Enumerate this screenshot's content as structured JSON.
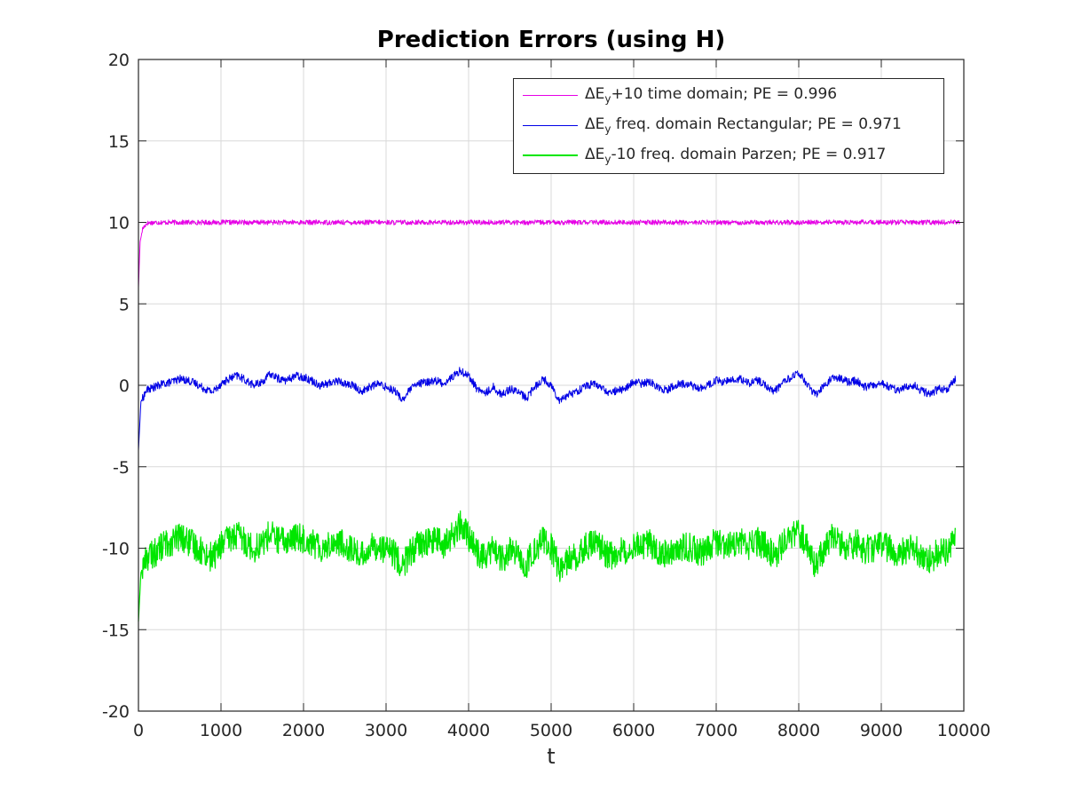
{
  "chart_data": {
    "type": "line",
    "title": "Prediction Errors (using H)",
    "xlabel": "t",
    "ylabel": "",
    "xlim": [
      0,
      10000
    ],
    "ylim": [
      -20,
      20
    ],
    "xticks": [
      0,
      1000,
      2000,
      3000,
      4000,
      5000,
      6000,
      7000,
      8000,
      9000,
      10000
    ],
    "yticks": [
      -20,
      -15,
      -10,
      -5,
      0,
      5,
      10,
      15,
      20
    ],
    "xtick_labels": [
      "0",
      "1000",
      "2000",
      "3000",
      "4000",
      "5000",
      "6000",
      "7000",
      "8000",
      "9000",
      "10000"
    ],
    "ytick_labels": [
      "-20",
      "-15",
      "-10",
      "-5",
      "0",
      "5",
      "10",
      "15",
      "20"
    ],
    "grid": true,
    "legend_position": "top-right",
    "series": [
      {
        "name": "ΔE_y+10 time domain; PE = 0.996",
        "legend_parts": {
          "delta": "ΔE",
          "sub": "y",
          "rest": "+10 time domain; PE = 0.996"
        },
        "color": "#e600e6",
        "x": [
          0,
          20,
          50,
          100,
          200,
          500,
          1000,
          2000,
          3000,
          4000,
          5000,
          6000,
          7000,
          8000,
          9000,
          9950
        ],
        "y": [
          6.0,
          8.8,
          9.6,
          9.95,
          10.0,
          10.0,
          10.0,
          10.0,
          10.0,
          10.0,
          10.0,
          10.0,
          10.0,
          10.0,
          10.0,
          10.0
        ],
        "noise_amplitude": 0.15
      },
      {
        "name": "ΔE_y freq. domain Rectangular; PE = 0.971",
        "legend_parts": {
          "delta": "ΔE",
          "sub": "y",
          "rest": " freq. domain Rectangular; PE = 0.971"
        },
        "color": "#0000e6",
        "x": [
          0,
          30,
          100,
          200,
          300,
          400,
          500,
          600,
          700,
          800,
          900,
          1000,
          1100,
          1200,
          1300,
          1400,
          1500,
          1600,
          1700,
          1800,
          1900,
          2000,
          2100,
          2200,
          2300,
          2400,
          2500,
          2600,
          2700,
          2800,
          2900,
          3000,
          3100,
          3200,
          3300,
          3400,
          3500,
          3600,
          3700,
          3800,
          3900,
          4000,
          4100,
          4200,
          4300,
          4400,
          4500,
          4600,
          4700,
          4800,
          4900,
          5000,
          5100,
          5200,
          5300,
          5400,
          5500,
          5600,
          5700,
          5800,
          5900,
          6000,
          6100,
          6200,
          6300,
          6400,
          6500,
          6600,
          6700,
          6800,
          6900,
          7000,
          7100,
          7200,
          7300,
          7400,
          7500,
          7600,
          7700,
          7800,
          7900,
          8000,
          8100,
          8200,
          8300,
          8400,
          8500,
          8600,
          8700,
          8800,
          8900,
          9000,
          9100,
          9200,
          9300,
          9400,
          9500,
          9600,
          9700,
          9800,
          9900
        ],
        "y": [
          -4.0,
          -1.0,
          -0.3,
          -0.1,
          0.1,
          0.2,
          0.4,
          0.3,
          0.1,
          -0.2,
          -0.4,
          0.1,
          0.4,
          0.6,
          0.3,
          0.0,
          0.2,
          0.7,
          0.4,
          0.3,
          0.6,
          0.5,
          0.3,
          0.0,
          0.1,
          0.3,
          0.1,
          0.0,
          -0.4,
          -0.1,
          0.1,
          -0.1,
          -0.3,
          -0.9,
          -0.2,
          0.1,
          0.2,
          0.3,
          0.1,
          0.5,
          0.9,
          0.6,
          -0.2,
          -0.5,
          -0.1,
          -0.6,
          -0.2,
          -0.4,
          -0.8,
          -0.1,
          0.4,
          0.0,
          -0.9,
          -0.6,
          -0.4,
          -0.1,
          0.1,
          -0.1,
          -0.5,
          -0.3,
          -0.2,
          0.2,
          0.1,
          0.2,
          -0.1,
          -0.3,
          0.0,
          0.1,
          0.0,
          -0.2,
          0.0,
          0.3,
          0.2,
          0.3,
          0.4,
          0.1,
          0.3,
          0.0,
          -0.4,
          0.1,
          0.5,
          0.7,
          0.1,
          -0.6,
          -0.1,
          0.5,
          0.4,
          0.2,
          0.3,
          -0.1,
          0.0,
          0.1,
          -0.1,
          -0.3,
          -0.1,
          0.0,
          -0.4,
          -0.5,
          -0.2,
          -0.3,
          0.4
        ],
        "noise_amplitude": 0.25
      },
      {
        "name": "ΔE_y-10 freq. domain Parzen; PE = 0.917",
        "legend_parts": {
          "delta": "ΔE",
          "sub": "y",
          "rest": "-10 freq. domain Parzen; PE = 0.917"
        },
        "color": "#00e600",
        "x": [
          0,
          30,
          100,
          200,
          300,
          400,
          500,
          600,
          700,
          800,
          900,
          1000,
          1100,
          1200,
          1300,
          1400,
          1500,
          1600,
          1700,
          1800,
          1900,
          2000,
          2100,
          2200,
          2300,
          2400,
          2500,
          2600,
          2700,
          2800,
          2900,
          3000,
          3100,
          3200,
          3300,
          3400,
          3500,
          3600,
          3700,
          3800,
          3900,
          4000,
          4100,
          4200,
          4300,
          4400,
          4500,
          4600,
          4700,
          4800,
          4900,
          5000,
          5100,
          5200,
          5300,
          5400,
          5500,
          5600,
          5700,
          5800,
          5900,
          6000,
          6100,
          6200,
          6300,
          6400,
          6500,
          6600,
          6700,
          6800,
          6900,
          7000,
          7100,
          7200,
          7300,
          7400,
          7500,
          7600,
          7700,
          7800,
          7900,
          8000,
          8100,
          8200,
          8300,
          8400,
          8500,
          8600,
          8700,
          8800,
          8900,
          9000,
          9100,
          9200,
          9300,
          9400,
          9500,
          9600,
          9700,
          9800,
          9900
        ],
        "y": [
          -14.5,
          -11.5,
          -10.5,
          -10.3,
          -9.8,
          -9.6,
          -9.3,
          -9.6,
          -9.9,
          -10.3,
          -10.6,
          -9.8,
          -9.4,
          -9.2,
          -9.6,
          -10.0,
          -9.7,
          -9.1,
          -9.5,
          -9.6,
          -9.3,
          -9.4,
          -9.6,
          -10.0,
          -9.8,
          -9.6,
          -9.8,
          -10.1,
          -10.5,
          -10.0,
          -9.8,
          -10.1,
          -10.4,
          -11.1,
          -10.2,
          -9.8,
          -9.6,
          -9.5,
          -9.8,
          -9.3,
          -8.6,
          -9.3,
          -10.2,
          -10.6,
          -10.0,
          -10.8,
          -10.2,
          -10.5,
          -11.1,
          -10.0,
          -9.5,
          -10.0,
          -11.2,
          -10.8,
          -10.5,
          -10.0,
          -9.7,
          -10.0,
          -10.5,
          -10.2,
          -10.1,
          -9.7,
          -9.8,
          -9.7,
          -10.1,
          -10.4,
          -10.0,
          -9.9,
          -10.0,
          -10.3,
          -10.0,
          -9.6,
          -9.8,
          -9.7,
          -9.6,
          -9.9,
          -9.6,
          -9.9,
          -10.5,
          -9.8,
          -9.3,
          -9.0,
          -9.8,
          -11.0,
          -10.2,
          -9.4,
          -9.6,
          -9.9,
          -9.7,
          -10.1,
          -10.0,
          -9.8,
          -10.0,
          -10.3,
          -10.1,
          -10.0,
          -10.5,
          -10.7,
          -10.2,
          -10.3,
          -9.5
        ],
        "noise_amplitude": 0.9
      }
    ]
  }
}
